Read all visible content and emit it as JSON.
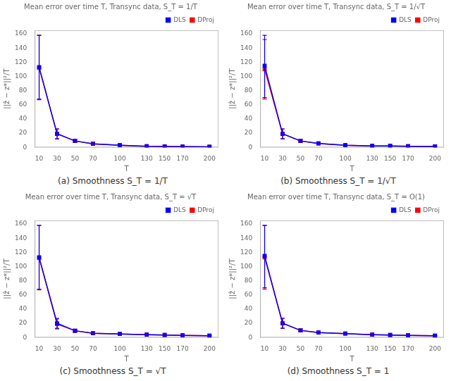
{
  "chart_data": [
    {
      "type": "line",
      "title": "Mean error over time T, Transync data, S_T = 1/T",
      "x_label": "T",
      "y_label": "||ẑ − z*||²/T",
      "annotations": [
        "(a) Smoothness S_T = 1/T"
      ],
      "x": [
        10,
        30,
        50,
        70,
        100,
        130,
        150,
        170,
        200
      ],
      "xlim": [
        5,
        210
      ],
      "xticks": [
        10,
        30,
        50,
        70,
        100,
        130,
        150,
        170,
        200
      ],
      "ylim": [
        0,
        165
      ],
      "yticks": [
        0,
        20,
        40,
        60,
        80,
        100,
        120,
        140,
        160
      ],
      "grid": false,
      "legend": "upper right",
      "marker": "square",
      "series": [
        {
          "name": "DLS",
          "color": "#0000ff",
          "values": [
            113,
            19,
            9,
            5,
            3,
            1.5,
            1.2,
            1.0,
            0.8
          ],
          "err_lo": [
            45,
            7,
            2,
            1,
            0.5,
            0.3,
            0.2,
            0.2,
            0.15
          ],
          "err_hi": [
            45,
            7,
            2,
            1,
            0.5,
            0.3,
            0.2,
            0.2,
            0.15
          ]
        },
        {
          "name": "DProj",
          "color": "#ff0000",
          "values": [
            112,
            19,
            9,
            5,
            3,
            1.5,
            1.2,
            1.0,
            0.8
          ],
          "err_lo": [
            45,
            7,
            2,
            1,
            0.5,
            0.3,
            0.2,
            0.2,
            0.15
          ],
          "err_hi": [
            46,
            7,
            2,
            1,
            0.5,
            0.3,
            0.2,
            0.2,
            0.15
          ]
        }
      ]
    },
    {
      "type": "line",
      "title": "Mean error over time T, Transync data, S_T = 1/√T",
      "x_label": "T",
      "y_label": "||ẑ − z*||²/T",
      "annotations": [
        "(b) Smoothness S_T = 1/√T"
      ],
      "x": [
        10,
        30,
        50,
        70,
        100,
        130,
        150,
        170,
        200
      ],
      "xlim": [
        5,
        210
      ],
      "xticks": [
        10,
        30,
        50,
        70,
        100,
        130,
        150,
        170,
        200
      ],
      "ylim": [
        0,
        165
      ],
      "yticks": [
        0,
        20,
        40,
        60,
        80,
        100,
        120,
        140,
        160
      ],
      "grid": false,
      "legend": "upper right",
      "marker": "square",
      "series": [
        {
          "name": "DLS",
          "color": "#0000ff",
          "values": [
            115,
            19,
            9,
            5.5,
            3,
            2,
            2,
            1.5,
            1.2
          ],
          "err_lo": [
            45,
            7,
            2,
            1,
            0.5,
            0.3,
            0.2,
            0.2,
            0.15
          ],
          "err_hi": [
            43,
            7,
            2,
            1,
            0.5,
            0.3,
            0.2,
            0.2,
            0.15
          ]
        },
        {
          "name": "DProj",
          "color": "#ff0000",
          "values": [
            110,
            19,
            9,
            5.5,
            3,
            2,
            2,
            1.5,
            1.2
          ],
          "err_lo": [
            42,
            7,
            2,
            1,
            0.5,
            0.3,
            0.2,
            0.2,
            0.15
          ],
          "err_hi": [
            42,
            7,
            2,
            1,
            0.5,
            0.3,
            0.2,
            0.2,
            0.15
          ]
        }
      ]
    },
    {
      "type": "line",
      "title": "Mean error over time T, Transync data, S_T = √T",
      "x_label": "T",
      "y_label": "||ẑ − z*||²/T",
      "annotations": [
        "(c) Smoothness S_T = √T"
      ],
      "x": [
        10,
        30,
        50,
        70,
        100,
        130,
        150,
        170,
        200
      ],
      "xlim": [
        5,
        210
      ],
      "xticks": [
        10,
        30,
        50,
        70,
        100,
        130,
        150,
        170,
        200
      ],
      "ylim": [
        0,
        165
      ],
      "yticks": [
        0,
        20,
        40,
        60,
        80,
        100,
        120,
        140,
        160
      ],
      "grid": false,
      "legend": "upper right",
      "marker": "square",
      "series": [
        {
          "name": "DLS",
          "color": "#0000ff",
          "values": [
            113,
            20,
            9.5,
            6,
            5,
            4,
            3.5,
            3,
            2.5
          ],
          "err_lo": [
            45,
            7,
            2,
            1,
            0.5,
            0.3,
            0.2,
            0.2,
            0.15
          ],
          "err_hi": [
            45,
            7,
            2,
            1,
            0.5,
            0.3,
            0.2,
            0.2,
            0.15
          ]
        },
        {
          "name": "DProj",
          "color": "#ff0000",
          "values": [
            112,
            19,
            9.5,
            6,
            5,
            4,
            3.5,
            3,
            2.5
          ],
          "err_lo": [
            45,
            7,
            2,
            1,
            0.5,
            0.3,
            0.2,
            0.2,
            0.15
          ],
          "err_hi": [
            46,
            7,
            2,
            1,
            0.5,
            0.3,
            0.2,
            0.2,
            0.15
          ]
        }
      ]
    },
    {
      "type": "line",
      "title": "Mean error over time T, Transync data, S_T = O(1)",
      "x_label": "T",
      "y_label": "||ẑ − z*||²/T",
      "annotations": [
        "(d) Smoothness S_T = 1"
      ],
      "x": [
        10,
        30,
        50,
        70,
        100,
        130,
        150,
        170,
        200
      ],
      "xlim": [
        5,
        210
      ],
      "xticks": [
        10,
        30,
        50,
        70,
        100,
        130,
        150,
        170,
        200
      ],
      "ylim": [
        0,
        165
      ],
      "yticks": [
        0,
        20,
        40,
        60,
        80,
        100,
        120,
        140,
        160
      ],
      "grid": false,
      "legend": "upper right",
      "marker": "square",
      "series": [
        {
          "name": "DLS",
          "color": "#0000ff",
          "values": [
            115,
            20,
            10,
            7,
            5.5,
            4,
            3.5,
            3,
            2.5
          ],
          "err_lo": [
            45,
            7,
            2,
            1,
            0.5,
            0.3,
            0.2,
            0.2,
            0.15
          ],
          "err_hi": [
            43,
            7,
            2,
            1,
            0.5,
            0.3,
            0.2,
            0.2,
            0.15
          ]
        },
        {
          "name": "DProj",
          "color": "#ff0000",
          "values": [
            113,
            20,
            10,
            7,
            5.5,
            4,
            3.5,
            3,
            2.5
          ],
          "err_lo": [
            45,
            7,
            2,
            1,
            0.5,
            0.3,
            0.2,
            0.2,
            0.15
          ],
          "err_hi": [
            45,
            7,
            2,
            1,
            0.5,
            0.3,
            0.2,
            0.2,
            0.15
          ]
        }
      ]
    }
  ]
}
